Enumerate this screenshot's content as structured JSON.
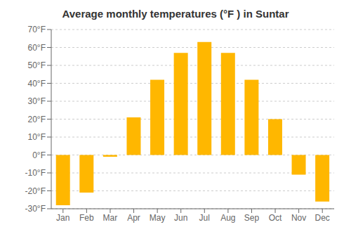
{
  "chart_data": {
    "type": "bar",
    "title": "Average monthly temperatures (°F ) in Suntar",
    "categories": [
      "Jan",
      "Feb",
      "Mar",
      "Apr",
      "May",
      "Jun",
      "Jul",
      "Aug",
      "Sep",
      "Oct",
      "Nov",
      "Dec"
    ],
    "values": [
      -28,
      -21,
      -1,
      21,
      42,
      57,
      63,
      57,
      42,
      20,
      -11,
      -26
    ],
    "color": "#FFB700",
    "ylim": [
      -30,
      70
    ],
    "yticks": [
      {
        "value": -30,
        "label": "-30°F"
      },
      {
        "value": -20,
        "label": "-20°F"
      },
      {
        "value": -10,
        "label": "-10°F"
      },
      {
        "value": 0,
        "label": "0°F"
      },
      {
        "value": 10,
        "label": "10°F"
      },
      {
        "value": 20,
        "label": "20°F"
      },
      {
        "value": 30,
        "label": "30°F"
      },
      {
        "value": 40,
        "label": "40°F"
      },
      {
        "value": 50,
        "label": "50°F"
      },
      {
        "value": 60,
        "label": "60°F"
      },
      {
        "value": 70,
        "label": "70°F"
      }
    ],
    "grid": true
  }
}
